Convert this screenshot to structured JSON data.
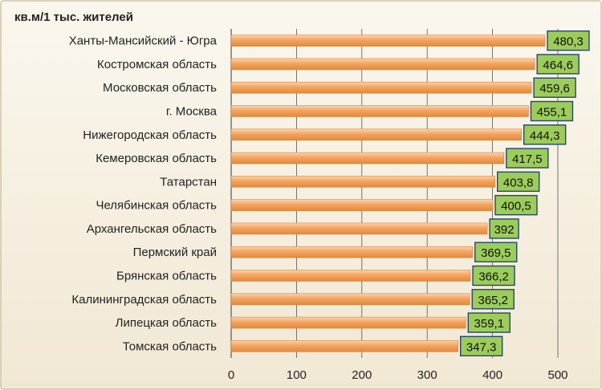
{
  "chart_data": {
    "type": "bar",
    "orientation": "horizontal",
    "unit_label": "кв.м/1 тыс. жителей",
    "categories": [
      "Ханты-Мансийский - Югра",
      "Костромская область",
      "Московская область",
      "г. Москва",
      "Нижегородская область",
      "Кемеровская область",
      "Татарстан",
      "Челябинская область",
      "Архангельская область",
      "Пермский край",
      "Брянская область",
      "Калининградская область",
      "Липецкая область",
      "Томская область"
    ],
    "values": [
      480.3,
      464.6,
      459.6,
      455.1,
      444.3,
      417.5,
      403.8,
      400.5,
      392,
      369.5,
      366.2,
      365.2,
      359.1,
      347.3
    ],
    "value_labels": [
      "480,3",
      "464,6",
      "459,6",
      "455,1",
      "444,3",
      "417,5",
      "403,8",
      "400,5",
      "392",
      "369,5",
      "366,2",
      "365,2",
      "359,1",
      "347,3"
    ],
    "xlim": [
      0,
      500
    ],
    "x_ticks": [
      0,
      100,
      200,
      300,
      400,
      500
    ],
    "grid": true,
    "legend": "none",
    "colors": {
      "background": "#f6f0e2",
      "bar": "#f4a460",
      "bar_highlight": "#fbd1a8",
      "label_box": "#9ccc5a",
      "label_border": "#27466b",
      "gridline": "#555555",
      "text": "#222222"
    }
  }
}
